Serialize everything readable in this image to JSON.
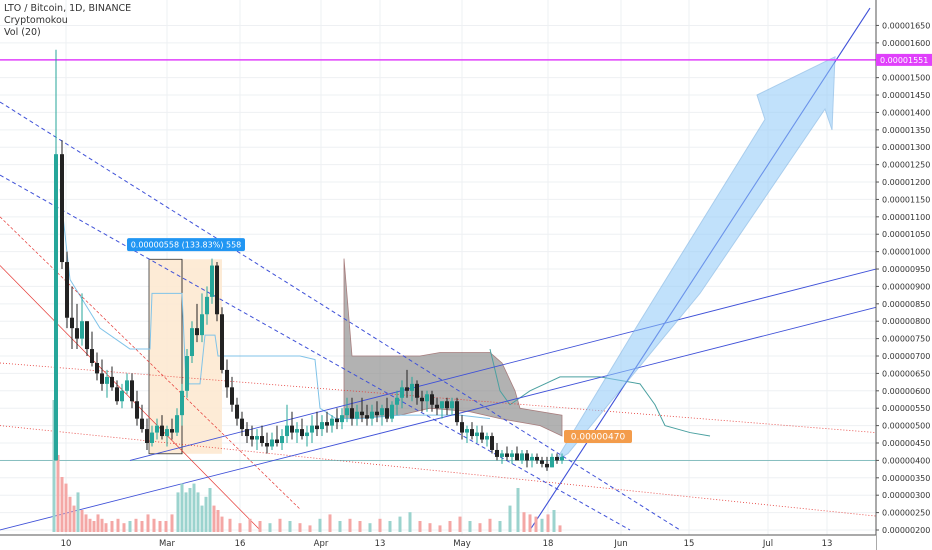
{
  "legend": {
    "symbol": "LTO / Bitcoin, 1D, BINANCE",
    "indicator1": "Cryptomokou",
    "indicator2": "Vol (20)"
  },
  "colors": {
    "up": "#26a69a",
    "down": "#ef5350",
    "target_line": "#e040fb",
    "trend_blue": "#3f51d8",
    "dotted_red": "#e53935",
    "cloud": "#8a8a8a",
    "arrow": "#90caf9",
    "measure_box": "#fde7cf",
    "badge_blue": "#2196f3",
    "badge_orange": "#f39c4b"
  },
  "chart_data": {
    "type": "candlestick",
    "x_label_ticks": [
      "10",
      "Mar",
      "16",
      "Apr",
      "13",
      "May",
      "18",
      "Jun",
      "15",
      "Jul",
      "13"
    ],
    "y_ticks": [
      "0.00001650",
      "0.00001600",
      "0.00001500",
      "0.00001450",
      "0.00001400",
      "0.00001350",
      "0.00001300",
      "0.00001250",
      "0.00001200",
      "0.00001150",
      "0.00001100",
      "0.00001050",
      "0.00001000",
      "0.00000950",
      "0.00000900",
      "0.00000850",
      "0.00000800",
      "0.00000750",
      "0.00000700",
      "0.00000650",
      "0.00000600",
      "0.00000550",
      "0.00000500",
      "0.00000450",
      "0.00000400",
      "0.00000350",
      "0.00000300",
      "0.00000250",
      "0.00000200"
    ],
    "ylim": [
      2e-06,
      1.68e-05
    ],
    "target_price": "0.00001551",
    "current_price": "0.00000470",
    "measure_label": "0.00000558 (133.83%) 558",
    "grid": true
  }
}
